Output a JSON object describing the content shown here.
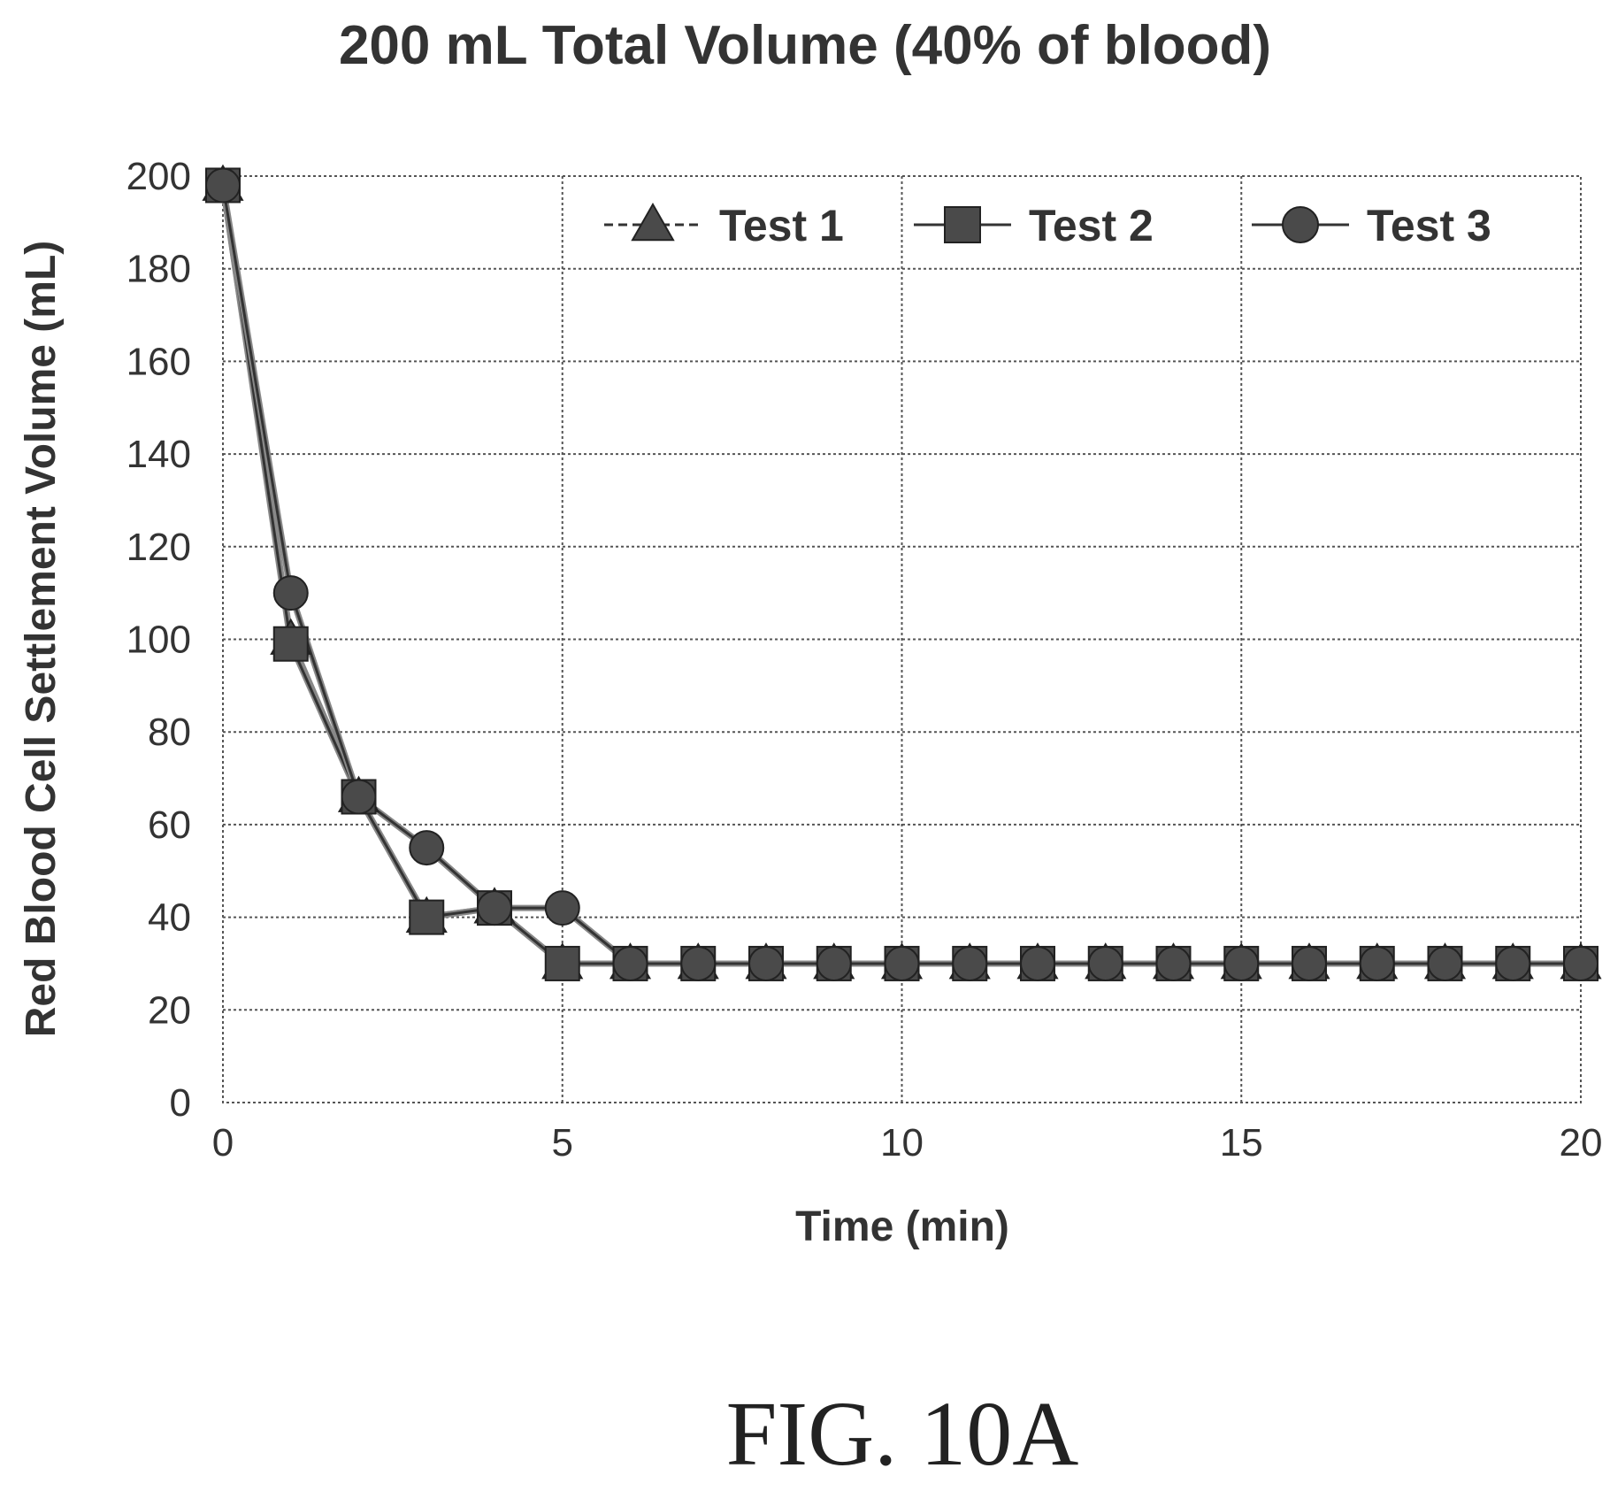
{
  "figure_label": "FIG. 10A",
  "chart_data": {
    "type": "line",
    "title": "200 mL Total Volume (40% of blood)",
    "xlabel": "Time (min)",
    "ylabel": "Red Blood Cell Settlement Volume (mL)",
    "xlim": [
      0,
      20
    ],
    "ylim": [
      0,
      200
    ],
    "xticks": [
      "0",
      "5",
      "10",
      "15",
      "20"
    ],
    "yticks": [
      "0",
      "20",
      "40",
      "60",
      "80",
      "100",
      "120",
      "140",
      "160",
      "180",
      "200"
    ],
    "grid": true,
    "legend": "top",
    "series": [
      {
        "name": "Test 1",
        "marker": "triangle",
        "x": [
          0,
          1,
          2,
          3,
          4,
          5,
          6,
          7,
          8,
          9,
          10,
          11,
          12,
          13,
          14,
          15,
          16,
          17,
          18,
          19,
          20
        ],
        "y": [
          198,
          100,
          66,
          40,
          42,
          30,
          30,
          30,
          30,
          30,
          30,
          30,
          30,
          30,
          30,
          30,
          30,
          30,
          30,
          30,
          30
        ]
      },
      {
        "name": "Test 2",
        "marker": "square",
        "x": [
          0,
          1,
          2,
          3,
          4,
          5,
          6,
          7,
          8,
          9,
          10,
          11,
          12,
          13,
          14,
          15,
          16,
          17,
          18,
          19,
          20
        ],
        "y": [
          198,
          99,
          66,
          40,
          42,
          30,
          30,
          30,
          30,
          30,
          30,
          30,
          30,
          30,
          30,
          30,
          30,
          30,
          30,
          30,
          30
        ]
      },
      {
        "name": "Test 3",
        "marker": "circle",
        "x": [
          0,
          1,
          2,
          3,
          4,
          5,
          6,
          7,
          8,
          9,
          10,
          11,
          12,
          13,
          14,
          15,
          16,
          17,
          18,
          19,
          20
        ],
        "y": [
          198,
          110,
          66,
          55,
          42,
          42,
          30,
          30,
          30,
          30,
          30,
          30,
          30,
          30,
          30,
          30,
          30,
          30,
          30,
          30,
          30
        ]
      }
    ]
  }
}
